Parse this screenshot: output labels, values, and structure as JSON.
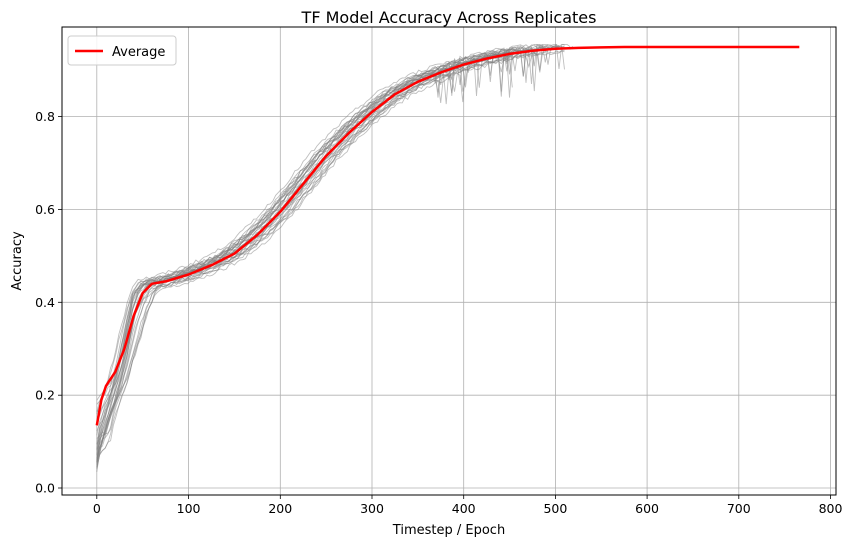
{
  "chart_data": {
    "type": "line",
    "title": "TF Model Accuracy Across Replicates",
    "xlabel": "Timestep / Epoch",
    "ylabel": "Accuracy",
    "xlim": [
      -38,
      806
    ],
    "ylim": [
      -0.015,
      0.993
    ],
    "x_ticks": [
      0,
      100,
      200,
      300,
      400,
      500,
      600,
      700,
      800
    ],
    "y_ticks": [
      0.0,
      0.2,
      0.4,
      0.6,
      0.8
    ],
    "grid": true,
    "legend_position": "top-left",
    "replicates": {
      "count": 30,
      "color": "#808080",
      "opacity": 0.5,
      "x_extent": [
        0,
        520
      ]
    },
    "series": [
      {
        "name": "Average",
        "color": "#ff0000",
        "x": [
          0,
          5,
          10,
          20,
          30,
          40,
          50,
          60,
          75,
          100,
          125,
          150,
          175,
          200,
          225,
          250,
          275,
          300,
          325,
          350,
          375,
          400,
          425,
          450,
          475,
          500,
          525,
          550,
          575,
          600,
          650,
          700,
          766
        ],
        "y": [
          0.135,
          0.19,
          0.22,
          0.25,
          0.3,
          0.37,
          0.42,
          0.44,
          0.445,
          0.46,
          0.48,
          0.505,
          0.545,
          0.595,
          0.655,
          0.715,
          0.765,
          0.81,
          0.848,
          0.875,
          0.895,
          0.912,
          0.925,
          0.935,
          0.942,
          0.946,
          0.948,
          0.949,
          0.95,
          0.95,
          0.95,
          0.95,
          0.95
        ]
      }
    ]
  }
}
